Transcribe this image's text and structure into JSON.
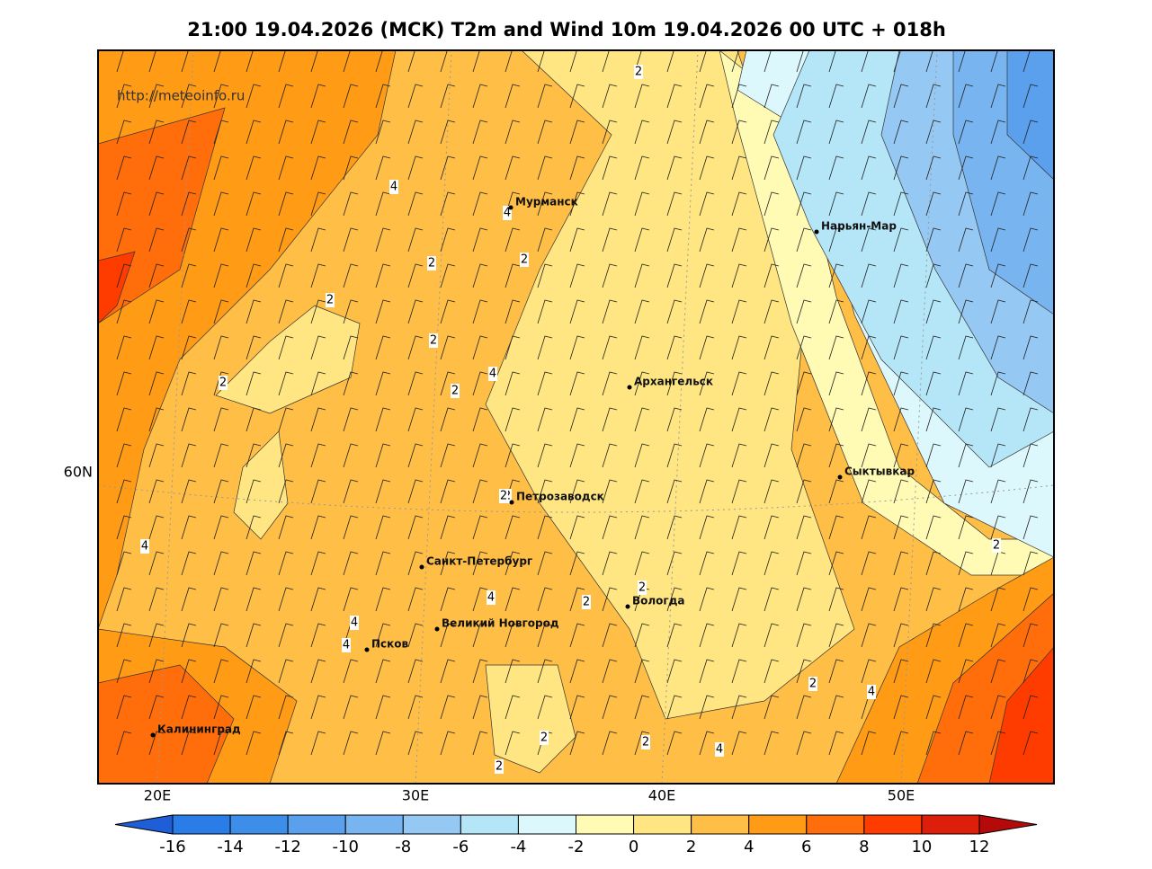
{
  "title": "21:00 19.04.2026 (MCK) T2m and Wind 10m 19.04.2026 00 UTC + 018h",
  "source_url": "http://meteoinfo.ru",
  "longitude_labels": [
    "20E",
    "30E",
    "40E",
    "50E"
  ],
  "latitude_labels": [
    "60N"
  ],
  "cities": [
    "Мурманск",
    "Нарьян-Мар",
    "Архангельск",
    "Сыктывкар",
    "Петрозаводск",
    "Санкт-Петербург",
    "Вологда",
    "Великий Новгород",
    "Псков",
    "Калининград"
  ],
  "contour_labels": [
    2,
    4,
    4,
    2,
    2,
    2,
    2,
    2,
    2,
    4,
    4,
    2,
    2,
    4,
    4,
    4,
    2,
    2,
    2,
    2,
    4,
    2,
    4,
    2,
    2
  ],
  "colorbar": {
    "ticks": [
      -16,
      -14,
      -12,
      -10,
      -8,
      -6,
      -4,
      -2,
      0,
      2,
      4,
      6,
      8,
      10,
      12
    ],
    "colors": [
      "#1e5fd8",
      "#2a7de6",
      "#3c8ee8",
      "#5aa0ec",
      "#78b4f0",
      "#96c8f4",
      "#b4e6f8",
      "#dcf8fc",
      "#fffab4",
      "#ffe682",
      "#ffbe46",
      "#ff9b14",
      "#ff6e0a",
      "#ff3c00",
      "#dc1e0a",
      "#b40a0a"
    ]
  }
}
